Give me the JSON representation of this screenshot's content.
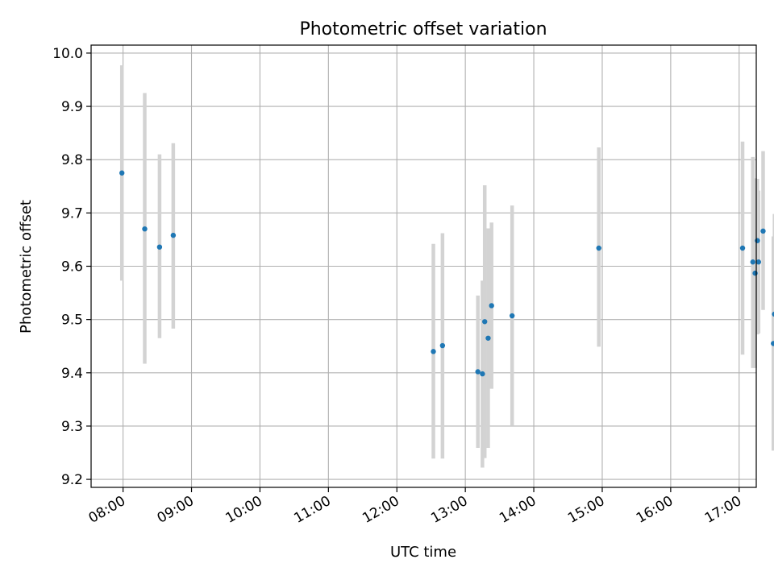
{
  "chart_data": {
    "type": "scatter",
    "title": "Photometric offset variation",
    "xlabel": "UTC time",
    "ylabel": "Photometric offset",
    "xlim": [
      "07:32",
      "17:15"
    ],
    "ylim": [
      9.185,
      10.015
    ],
    "grid": true,
    "x_ticks": [
      "08:00",
      "09:00",
      "10:00",
      "11:00",
      "12:00",
      "13:00",
      "14:00",
      "15:00",
      "16:00",
      "17:00"
    ],
    "y_ticks": [
      "9.2",
      "9.3",
      "9.4",
      "9.5",
      "9.6",
      "9.7",
      "9.8",
      "9.9",
      "10.0"
    ],
    "colors": {
      "point": "#1f77b4",
      "errorbar": "#d3d3d3",
      "grid": "#b0b0b0"
    },
    "series": [
      {
        "points": [
          {
            "x": "07:59",
            "y": 9.775,
            "ylow": 9.573,
            "yhigh": 9.977
          },
          {
            "x": "08:19",
            "y": 9.67,
            "ylow": 9.417,
            "yhigh": 9.925
          },
          {
            "x": "08:32",
            "y": 9.636,
            "ylow": 9.465,
            "yhigh": 9.81
          },
          {
            "x": "08:44",
            "y": 9.658,
            "ylow": 9.483,
            "yhigh": 9.831
          },
          {
            "x": "12:32",
            "y": 9.44,
            "ylow": 9.239,
            "yhigh": 9.642
          },
          {
            "x": "12:40",
            "y": 9.451,
            "ylow": 9.239,
            "yhigh": 9.662
          },
          {
            "x": "13:11",
            "y": 9.402,
            "ylow": 9.259,
            "yhigh": 9.545
          },
          {
            "x": "13:15",
            "y": 9.398,
            "ylow": 9.222,
            "yhigh": 9.573
          },
          {
            "x": "13:17",
            "y": 9.496,
            "ylow": 9.24,
            "yhigh": 9.752
          },
          {
            "x": "13:20",
            "y": 9.465,
            "ylow": 9.259,
            "yhigh": 9.671
          },
          {
            "x": "13:23",
            "y": 9.526,
            "ylow": 9.37,
            "yhigh": 9.682
          },
          {
            "x": "13:41",
            "y": 9.507,
            "ylow": 9.3,
            "yhigh": 9.714
          },
          {
            "x": "14:57",
            "y": 9.634,
            "ylow": 9.449,
            "yhigh": 9.823
          },
          {
            "x": "17:03",
            "y": 9.634,
            "ylow": 9.434,
            "yhigh": 9.834
          },
          {
            "x": "17:12",
            "y": 9.608,
            "ylow": 9.409,
            "yhigh": 9.805
          },
          {
            "x": "17:14",
            "y": 9.587,
            "ylow": 9.409,
            "yhigh": 9.765
          },
          {
            "x": "17:16",
            "y": 9.648,
            "ylow": 9.472,
            "yhigh": 9.764
          },
          {
            "x": "17:17",
            "y": 9.608,
            "ylow": 9.474,
            "yhigh": 9.742
          },
          {
            "x": "17:21",
            "y": 9.666,
            "ylow": 9.518,
            "yhigh": 9.816
          },
          {
            "x": "17:30",
            "y": 9.455,
            "ylow": 9.254,
            "yhigh": 9.656
          },
          {
            "x": "17:31",
            "y": 9.51,
            "ylow": 9.323,
            "yhigh": 9.698
          }
        ]
      }
    ]
  }
}
